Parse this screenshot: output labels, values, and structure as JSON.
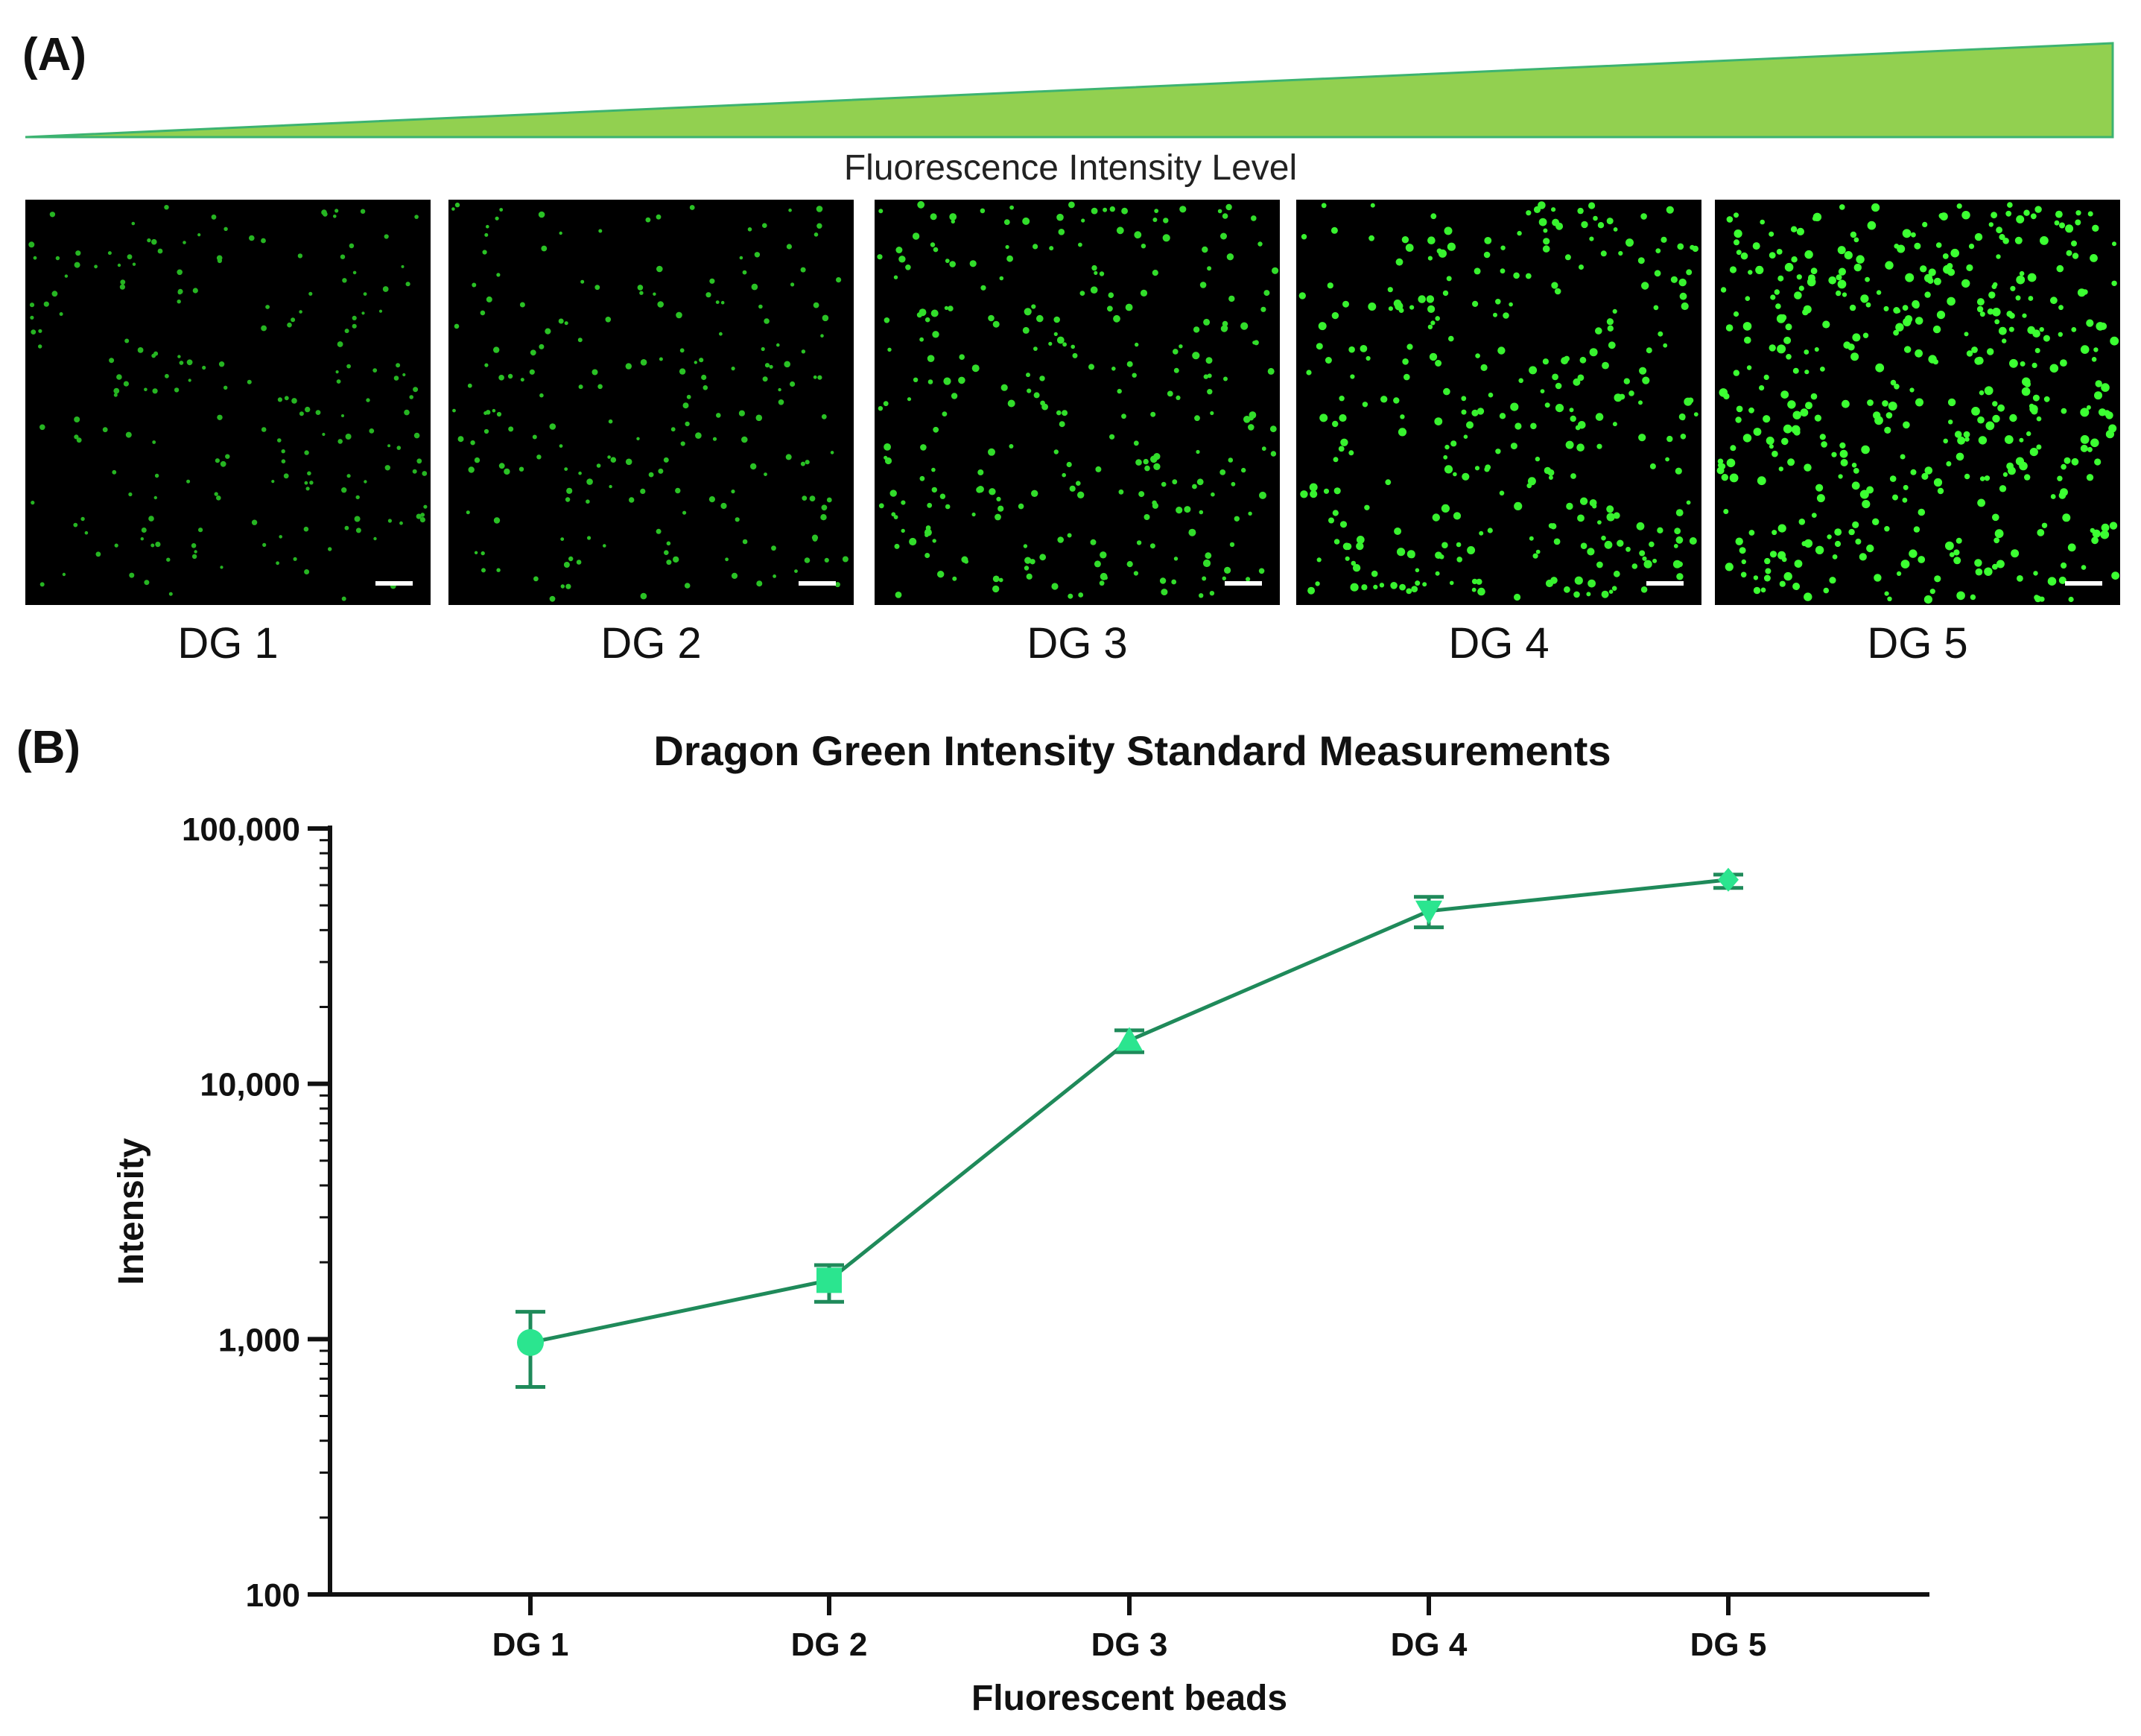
{
  "panel_a": {
    "label": "(A)",
    "ramp_caption": "Fluorescence Intensity Level",
    "ramp_color": "#92d050",
    "ramp_edge_color": "#3cb371",
    "images": [
      {
        "label": "DG 1",
        "density": 0.35,
        "brightness": 0.45
      },
      {
        "label": "DG 2",
        "density": 0.35,
        "brightness": 0.55
      },
      {
        "label": "DG 3",
        "density": 0.55,
        "brightness": 0.75
      },
      {
        "label": "DG 4",
        "density": 0.65,
        "brightness": 0.9
      },
      {
        "label": "DG 5",
        "density": 1.0,
        "brightness": 1.0
      }
    ]
  },
  "panel_b": {
    "label": "(B)"
  },
  "chart_data": {
    "type": "line",
    "title": "Dragon Green Intensity Standard Measurements",
    "xlabel": "Fluorescent beads",
    "ylabel": "Intensity",
    "yscale": "log",
    "ylim": [
      100,
      100000
    ],
    "yticks": [
      100,
      1000,
      10000,
      100000
    ],
    "ytick_labels": [
      "100",
      "1,000",
      "10,000",
      "100,000"
    ],
    "categories": [
      "DG 1",
      "DG 2",
      "DG 3",
      "DG 4",
      "DG 5"
    ],
    "series": [
      {
        "values": [
          970,
          1700,
          14800,
          47500,
          63000
        ],
        "err_low": [
          650,
          1400,
          13300,
          41000,
          58500
        ],
        "err_high": [
          1280,
          1950,
          16200,
          54000,
          66000
        ],
        "markers": [
          "circle",
          "square",
          "triangle-up",
          "triangle-down",
          "diamond"
        ],
        "line_color": "#1f8a5a",
        "marker_color": "#2be58f"
      }
    ],
    "grid": false,
    "legend": "none"
  }
}
